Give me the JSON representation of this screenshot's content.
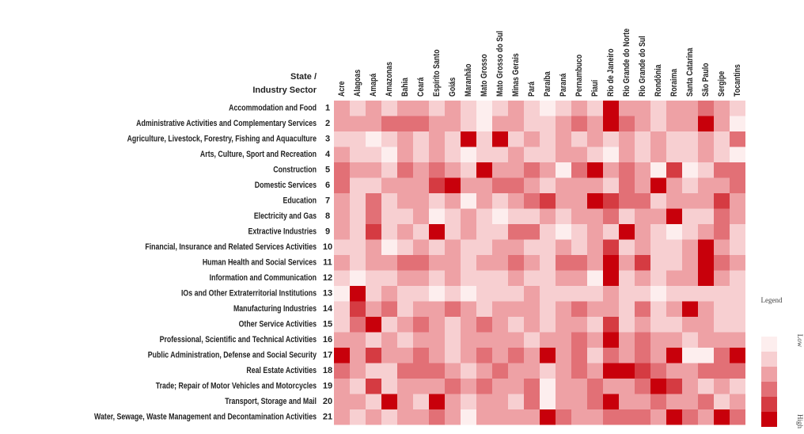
{
  "chart_data": {
    "type": "heatmap",
    "corner_label": [
      "State /",
      "Industry Sector"
    ],
    "columns": [
      "Acre",
      "Alagoas",
      "Amapá",
      "Amazonas",
      "Bahia",
      "Ceará",
      "Espírito Santo",
      "Goiás",
      "Maranhão",
      "Mato Grosso",
      "Mato Grosso do Sul",
      "Minas Gerais",
      "Pará",
      "Paraíba",
      "Paraná",
      "Pernambuco",
      "Piauí",
      "Rio de Janeiro",
      "Rio Grande do Norte",
      "Rio Grande do Sul",
      "Rondônia",
      "Roraima",
      "Santa Catarina",
      "São Paulo",
      "Sergipe",
      "Tocantins"
    ],
    "rows": [
      "Accommodation and Food",
      "Administrative Activities and Complementary Services",
      "Agriculture, Livestock, Forestry, Fishing and Aquaculture",
      "Arts, Culture, Sport and Recreation",
      "Construction",
      "Domestic Services",
      "Education",
      "Electricity and Gas",
      "Extractive Industries",
      "Financial, Insurance and Related Services Activities",
      "Human Health and Social Services",
      "Information and Communication",
      "IOs and Other Extraterritorial Institutions",
      "Manufacturing Industries",
      "Other Service Activities",
      "Professional, Scientific and Technical Activities",
      "Public Administration, Defense and Social Security",
      "Real Estate Activities",
      "Trade; Repair of Motor Vehicles and Motorcycles",
      "Transport, Storage and Mail",
      "Water, Sewage, Waste Management and Decontamination Activities"
    ],
    "row_ids": [
      "1",
      "2",
      "3",
      "4",
      "5",
      "6",
      "7",
      "8",
      "9",
      "10",
      "11",
      "12",
      "13",
      "14",
      "15",
      "16",
      "17",
      "18",
      "19",
      "20",
      "21"
    ],
    "values": [
      [
        2,
        1,
        2,
        1,
        2,
        2,
        1,
        2,
        1,
        0,
        1,
        2,
        1,
        0,
        1,
        2,
        1,
        5,
        2,
        2,
        1,
        2,
        2,
        3,
        2,
        1
      ],
      [
        2,
        2,
        2,
        3,
        3,
        3,
        2,
        2,
        1,
        0,
        2,
        2,
        1,
        1,
        2,
        3,
        2,
        5,
        3,
        2,
        1,
        2,
        2,
        5,
        2,
        0
      ],
      [
        1,
        1,
        0,
        1,
        2,
        1,
        2,
        1,
        5,
        1,
        5,
        1,
        2,
        1,
        2,
        1,
        2,
        1,
        2,
        1,
        2,
        1,
        1,
        2,
        1,
        3
      ],
      [
        2,
        1,
        1,
        0,
        2,
        1,
        2,
        1,
        0,
        1,
        1,
        2,
        1,
        1,
        2,
        2,
        1,
        0,
        2,
        1,
        2,
        1,
        1,
        2,
        1,
        0
      ],
      [
        3,
        2,
        2,
        1,
        3,
        2,
        3,
        2,
        1,
        5,
        2,
        2,
        3,
        2,
        0,
        3,
        5,
        2,
        3,
        2,
        0,
        4,
        0,
        1,
        3,
        3
      ],
      [
        3,
        1,
        1,
        2,
        2,
        2,
        4,
        5,
        2,
        2,
        3,
        3,
        2,
        1,
        2,
        2,
        2,
        1,
        3,
        2,
        5,
        2,
        1,
        2,
        2,
        3
      ],
      [
        2,
        1,
        3,
        1,
        2,
        2,
        1,
        2,
        0,
        2,
        1,
        2,
        3,
        4,
        2,
        2,
        5,
        4,
        3,
        3,
        1,
        2,
        2,
        2,
        4,
        2
      ],
      [
        2,
        1,
        3,
        1,
        1,
        2,
        0,
        1,
        2,
        1,
        0,
        1,
        1,
        2,
        1,
        2,
        2,
        3,
        1,
        2,
        2,
        5,
        1,
        1,
        3,
        2
      ],
      [
        2,
        1,
        4,
        1,
        2,
        1,
        5,
        1,
        2,
        1,
        1,
        3,
        3,
        1,
        0,
        1,
        2,
        1,
        5,
        2,
        1,
        0,
        1,
        2,
        3,
        1
      ],
      [
        1,
        1,
        2,
        0,
        1,
        2,
        1,
        2,
        1,
        1,
        2,
        2,
        1,
        1,
        2,
        1,
        2,
        4,
        1,
        2,
        1,
        1,
        2,
        5,
        2,
        1
      ],
      [
        2,
        1,
        2,
        2,
        3,
        3,
        2,
        2,
        1,
        2,
        2,
        3,
        2,
        1,
        3,
        3,
        2,
        5,
        2,
        4,
        1,
        1,
        2,
        5,
        3,
        2
      ],
      [
        1,
        0,
        1,
        1,
        2,
        2,
        1,
        2,
        1,
        1,
        1,
        2,
        1,
        1,
        2,
        2,
        0,
        5,
        1,
        2,
        1,
        2,
        2,
        5,
        2,
        1
      ],
      [
        0,
        5,
        1,
        2,
        1,
        1,
        0,
        1,
        0,
        1,
        1,
        1,
        2,
        1,
        1,
        1,
        1,
        2,
        1,
        1,
        0,
        1,
        1,
        1,
        1,
        1
      ],
      [
        1,
        4,
        2,
        3,
        1,
        2,
        2,
        3,
        2,
        1,
        2,
        2,
        2,
        1,
        2,
        3,
        2,
        2,
        1,
        3,
        1,
        2,
        5,
        2,
        1,
        1
      ],
      [
        1,
        3,
        5,
        1,
        2,
        3,
        2,
        1,
        2,
        3,
        2,
        1,
        2,
        1,
        2,
        2,
        1,
        4,
        1,
        2,
        1,
        1,
        2,
        2,
        1,
        1
      ],
      [
        2,
        2,
        1,
        2,
        1,
        2,
        2,
        1,
        2,
        2,
        2,
        2,
        1,
        2,
        2,
        3,
        2,
        5,
        2,
        3,
        2,
        2,
        1,
        2,
        2,
        2
      ],
      [
        5,
        2,
        4,
        2,
        2,
        3,
        2,
        1,
        2,
        3,
        2,
        3,
        2,
        5,
        2,
        3,
        1,
        3,
        2,
        3,
        2,
        5,
        0,
        0,
        3,
        5
      ],
      [
        3,
        2,
        1,
        1,
        3,
        3,
        3,
        2,
        1,
        2,
        3,
        2,
        2,
        1,
        2,
        3,
        2,
        5,
        5,
        4,
        3,
        2,
        2,
        3,
        3,
        3
      ],
      [
        2,
        1,
        4,
        1,
        2,
        2,
        2,
        3,
        2,
        3,
        2,
        2,
        3,
        0,
        2,
        2,
        3,
        2,
        2,
        3,
        5,
        4,
        2,
        1,
        2,
        1
      ],
      [
        2,
        2,
        1,
        5,
        2,
        1,
        5,
        2,
        1,
        2,
        2,
        1,
        3,
        0,
        2,
        2,
        3,
        5,
        2,
        2,
        3,
        2,
        2,
        3,
        1,
        2
      ],
      [
        2,
        1,
        2,
        1,
        2,
        2,
        3,
        2,
        0,
        2,
        2,
        2,
        2,
        5,
        3,
        2,
        2,
        3,
        3,
        3,
        2,
        5,
        3,
        2,
        5,
        3
      ]
    ],
    "colors": [
      "#fdeeee",
      "#f7cfd1",
      "#eea1a5",
      "#e27076",
      "#d53b42",
      "#c8000b"
    ],
    "legend": {
      "title": "Legend",
      "low": "Low",
      "high": "High"
    }
  }
}
